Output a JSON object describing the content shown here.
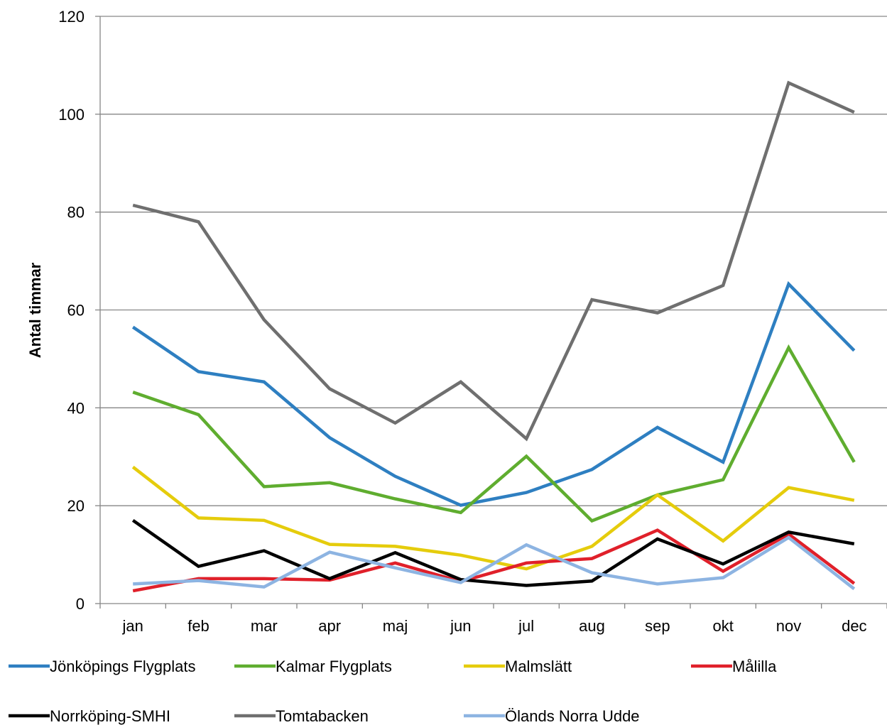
{
  "chart_data": {
    "type": "line",
    "ylabel": "Antal timmar",
    "xlabel": "",
    "title": "",
    "ylim": [
      0,
      120
    ],
    "yticks": [
      0,
      20,
      40,
      60,
      80,
      100,
      120
    ],
    "grid": true,
    "legend_position": "bottom",
    "categories": [
      "jan",
      "feb",
      "mar",
      "apr",
      "maj",
      "jun",
      "jul",
      "aug",
      "sep",
      "okt",
      "nov",
      "dec"
    ],
    "series": [
      {
        "name": "Jönköpings Flygplats",
        "color": "#2e7fc1",
        "values": [
          56.5,
          47.4,
          45.3,
          33.9,
          26.0,
          20.1,
          22.7,
          27.4,
          36.0,
          28.9,
          65.3,
          51.7
        ]
      },
      {
        "name": "Kalmar Flygplats",
        "color": "#5fad2f",
        "values": [
          43.2,
          38.6,
          23.9,
          24.7,
          21.4,
          18.6,
          30.1,
          16.9,
          22.2,
          25.3,
          52.3,
          28.9
        ]
      },
      {
        "name": "Malmslätt",
        "color": "#e5cc0c",
        "values": [
          27.9,
          17.5,
          17.0,
          12.1,
          11.7,
          9.9,
          7.1,
          11.7,
          22.2,
          12.8,
          23.7,
          21.1
        ]
      },
      {
        "name": "Målilla",
        "color": "#e0202a",
        "values": [
          2.6,
          5.1,
          5.1,
          4.8,
          8.3,
          4.5,
          8.3,
          9.2,
          15.0,
          6.6,
          14.2,
          4.1
        ]
      },
      {
        "name": "Norrköping-SMHI",
        "color": "#000000",
        "values": [
          17.0,
          7.6,
          10.8,
          5.1,
          10.4,
          4.9,
          3.7,
          4.6,
          13.2,
          8.1,
          14.6,
          12.2
        ]
      },
      {
        "name": "Tomtabacken",
        "color": "#6f6f6f",
        "values": [
          81.4,
          78.0,
          58.0,
          43.9,
          36.9,
          45.3,
          33.7,
          62.1,
          59.4,
          65.0,
          106.4,
          100.4
        ]
      },
      {
        "name": "Ölands Norra Udde",
        "color": "#8db4e2",
        "values": [
          4.0,
          4.7,
          3.4,
          10.5,
          7.3,
          4.3,
          12.0,
          6.3,
          4.0,
          5.3,
          13.5,
          3.0
        ]
      }
    ]
  }
}
